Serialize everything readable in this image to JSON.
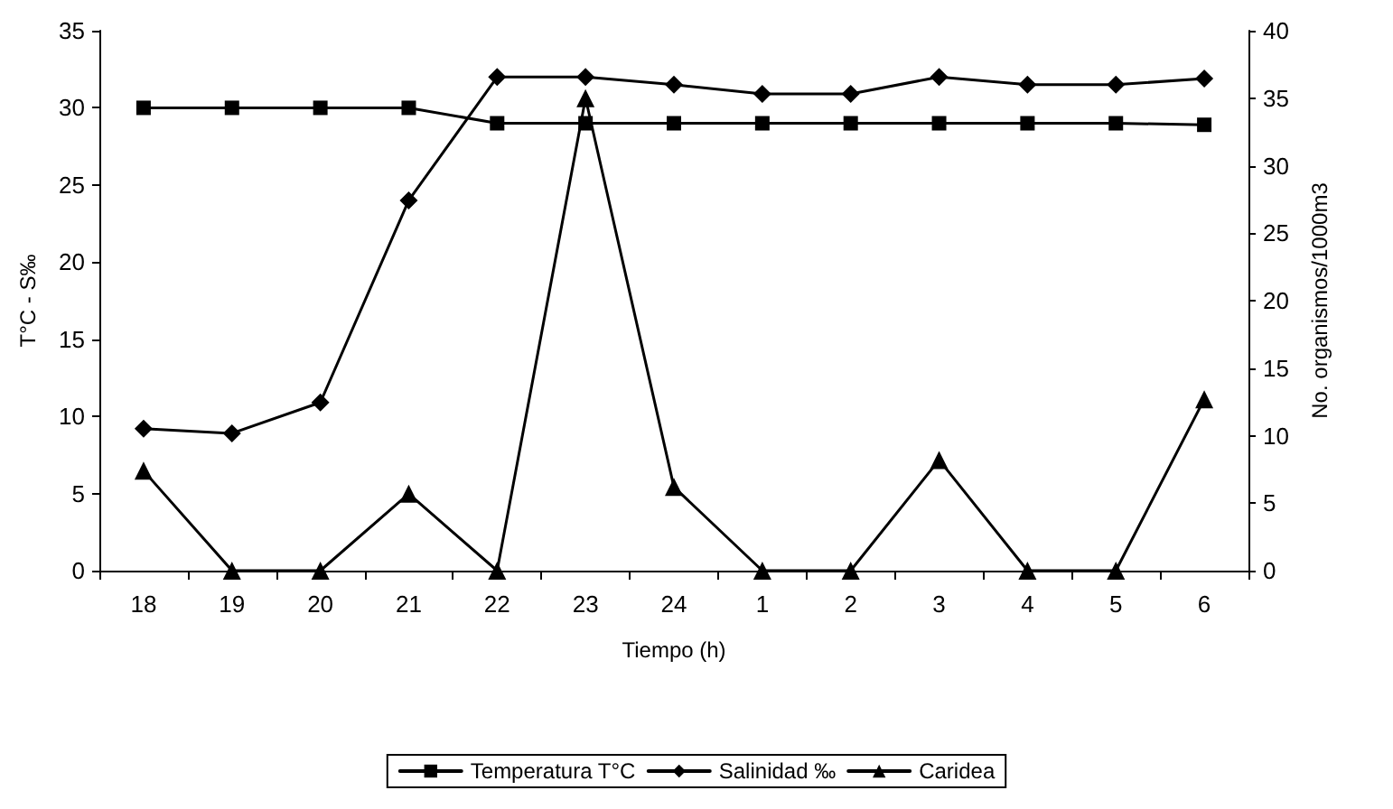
{
  "chart_data": {
    "type": "line",
    "xlabel": "Tiempo (h)",
    "ylabel": "T°C - S‰",
    "y2label": "No. organismos/1000m3",
    "categories": [
      "18",
      "19",
      "20",
      "21",
      "22",
      "23",
      "24",
      "1",
      "2",
      "3",
      "4",
      "5",
      "6"
    ],
    "series": [
      {
        "name": "Temperatura T°C",
        "color": "#000000",
        "marker": "square",
        "values": [
          30,
          30,
          30,
          30,
          29,
          29,
          29,
          29,
          29,
          29,
          29,
          29,
          28.9
        ]
      },
      {
        "name": "Salinidad ‰",
        "color": "#000000",
        "marker": "diamond",
        "values": [
          9.2,
          8.9,
          10.9,
          24,
          32,
          32,
          31.5,
          30.9,
          30.9,
          32,
          31.5,
          31.5,
          31.9
        ]
      },
      {
        "name": "Caridea",
        "color": "#000000",
        "marker": "triangle",
        "axis": "y2",
        "values": [
          7.4,
          0,
          0,
          5.7,
          0,
          35,
          6.2,
          0,
          0,
          8.2,
          0,
          0,
          12.7
        ]
      }
    ],
    "ylim": [
      0,
      35
    ],
    "yticks": [
      0,
      5,
      10,
      15,
      20,
      25,
      30,
      35
    ],
    "y2lim": [
      0,
      40
    ],
    "y2ticks": [
      0,
      5,
      10,
      15,
      20,
      25,
      30,
      35,
      40
    ],
    "grid": false,
    "legend": "bottom",
    "line_style": "solid"
  }
}
